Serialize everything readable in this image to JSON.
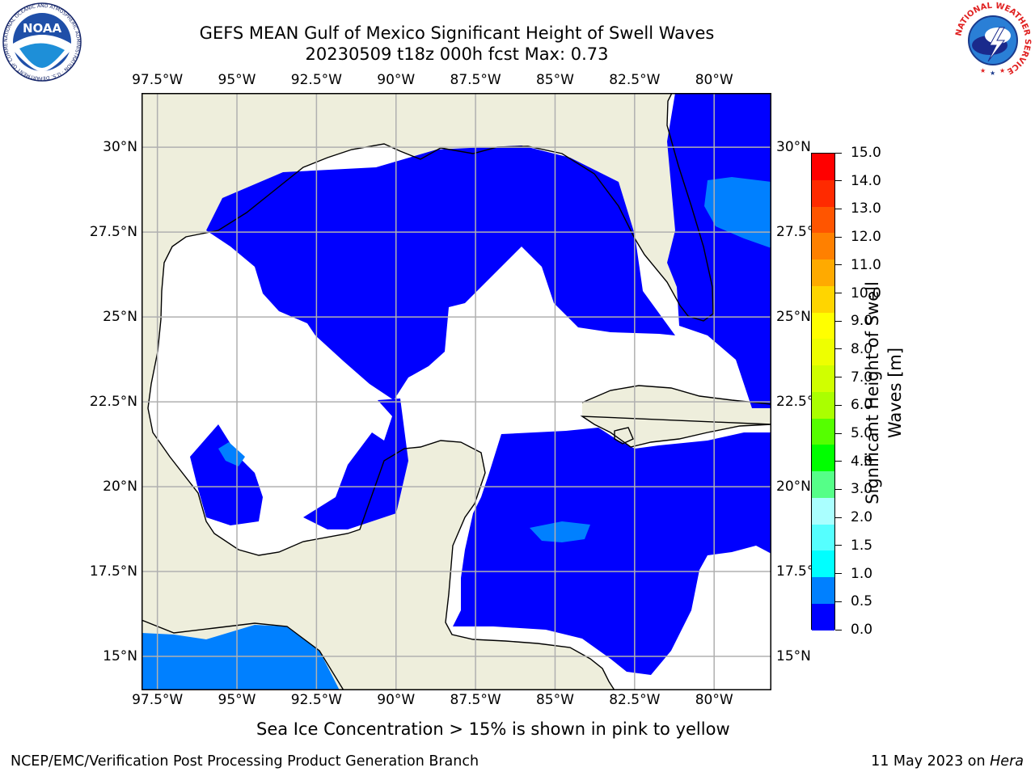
{
  "header": {
    "title_line1": "GEFS MEAN Gulf of Mexico Significant Height of Swell Waves",
    "title_line2": "20230509 t18z 000h fcst   Max: 0.73"
  },
  "logos": {
    "noaa_text": "NOAA",
    "noaa_ring_text": "NATIONAL OCEANIC AND ATMOSPHERIC ADMINISTRATION · U.S. DEPARTMENT OF COMMERCE",
    "nws_ring_text": "NATIONAL WEATHER SERVICE"
  },
  "map": {
    "lon_labels": [
      "97.5°W",
      "95°W",
      "92.5°W",
      "90°W",
      "87.5°W",
      "85°W",
      "82.5°W",
      "80°W"
    ],
    "lon_values": [
      -97.5,
      -95,
      -92.5,
      -90,
      -87.5,
      -85,
      -82.5,
      -80
    ],
    "lat_labels": [
      "30°N",
      "27.5°N",
      "25°N",
      "22.5°N",
      "20°N",
      "17.5°N",
      "15°N"
    ],
    "lat_values": [
      30,
      27.5,
      25,
      22.5,
      20,
      17.5,
      15
    ],
    "extent": {
      "lon": [
        -98,
        -78.2
      ],
      "lat": [
        14,
        31.6
      ]
    },
    "colors": {
      "land": "#eeeedc",
      "water_none": "#ffffff",
      "swell_0_0_5": "#0000ff",
      "swell_0_5_1_0": "#0080ff",
      "grid": "#b0b0b0"
    }
  },
  "colorbar": {
    "label_line1": "Significant Height of Swell",
    "label_line2": "Waves [m]",
    "ticks": [
      "15.0",
      "14.0",
      "13.0",
      "12.0",
      "11.0",
      "10.0",
      "9.0",
      "8.0",
      "7.0",
      "6.0",
      "5.0",
      "4.0",
      "3.0",
      "2.0",
      "1.5",
      "1.0",
      "0.5",
      "0.0"
    ],
    "colors": [
      "#ff0000",
      "#ff2a00",
      "#ff5500",
      "#ff8000",
      "#ffaa00",
      "#ffd500",
      "#ffff00",
      "#eeff00",
      "#d0ff00",
      "#aaff00",
      "#55ff00",
      "#00ff00",
      "#55ff88",
      "#aaffff",
      "#55ffff",
      "#00ffff",
      "#0080ff",
      "#0000ff"
    ]
  },
  "note": "Sea Ice Concentration > 15% is shown in pink to yellow",
  "footer": {
    "left": "NCEP/EMC/Verification Post Processing Product Generation Branch",
    "right_prefix": "11 May 2023 on ",
    "right_host": "Hera"
  }
}
